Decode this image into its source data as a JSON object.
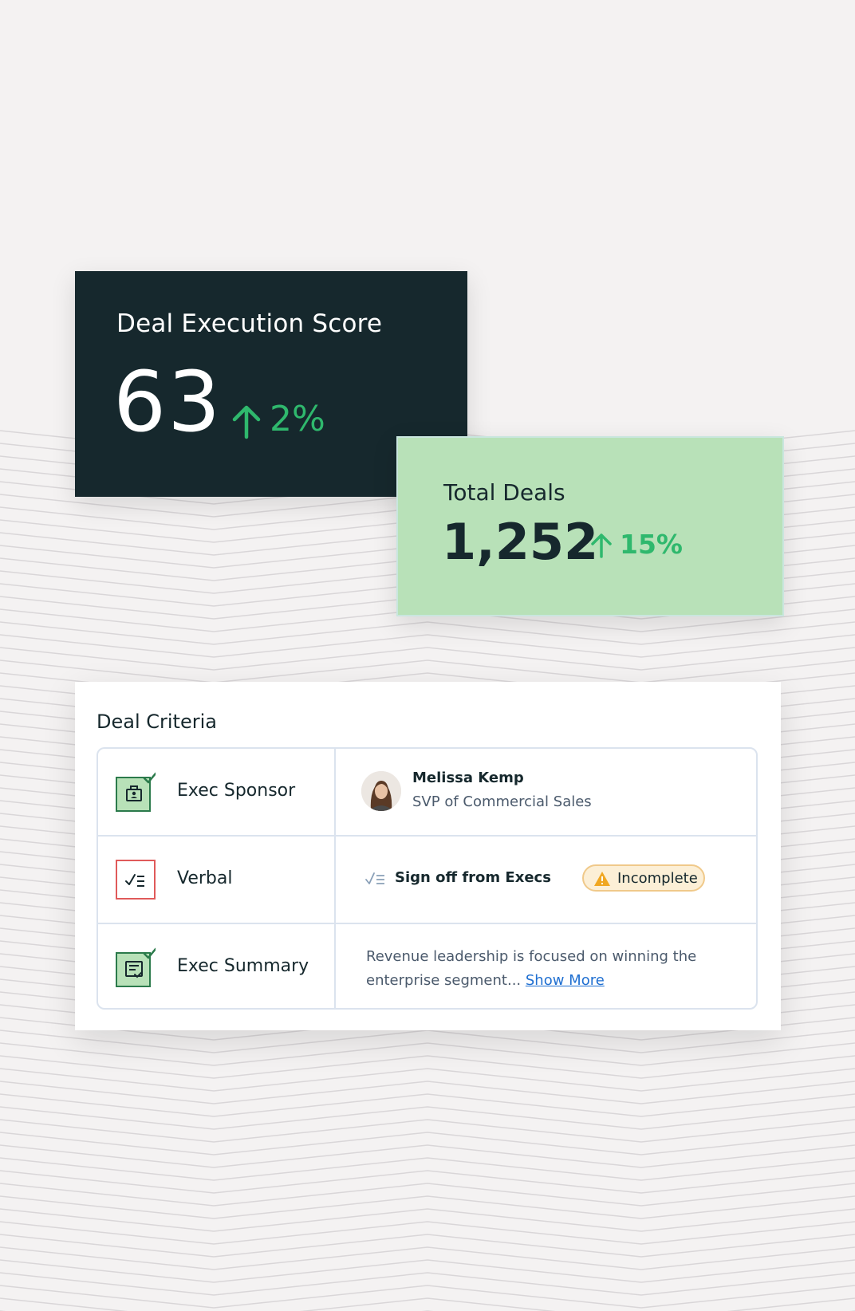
{
  "colors": {
    "page_bg": "#f4f2f2",
    "dark_card": "#16282d",
    "green_card": "#b8e1b8",
    "positive": "#2fb86d",
    "link": "#1f6fd1",
    "warning": "#f0a722"
  },
  "score_card": {
    "title": "Deal Execution Score",
    "value": "63",
    "change": "2%",
    "change_icon": "arrow-up-icon"
  },
  "deals_card": {
    "title": "Total Deals",
    "value": "1,252",
    "change": "15%",
    "change_icon": "arrow-up-icon"
  },
  "criteria": {
    "title": "Deal Criteria",
    "rows": [
      {
        "label": "Exec Sponsor",
        "icon": "badge-check-icon",
        "person_name": "Melissa Kemp",
        "person_role": "SVP of Commercial Sales"
      },
      {
        "label": "Verbal",
        "icon": "checklist-icon",
        "detail": "Sign off from Execs",
        "status": "Incomplete"
      },
      {
        "label": "Exec Summary",
        "icon": "document-check-icon",
        "summary": "Revenue leadership is focused on winning the enterprise segment...",
        "link": "Show More"
      }
    ]
  }
}
